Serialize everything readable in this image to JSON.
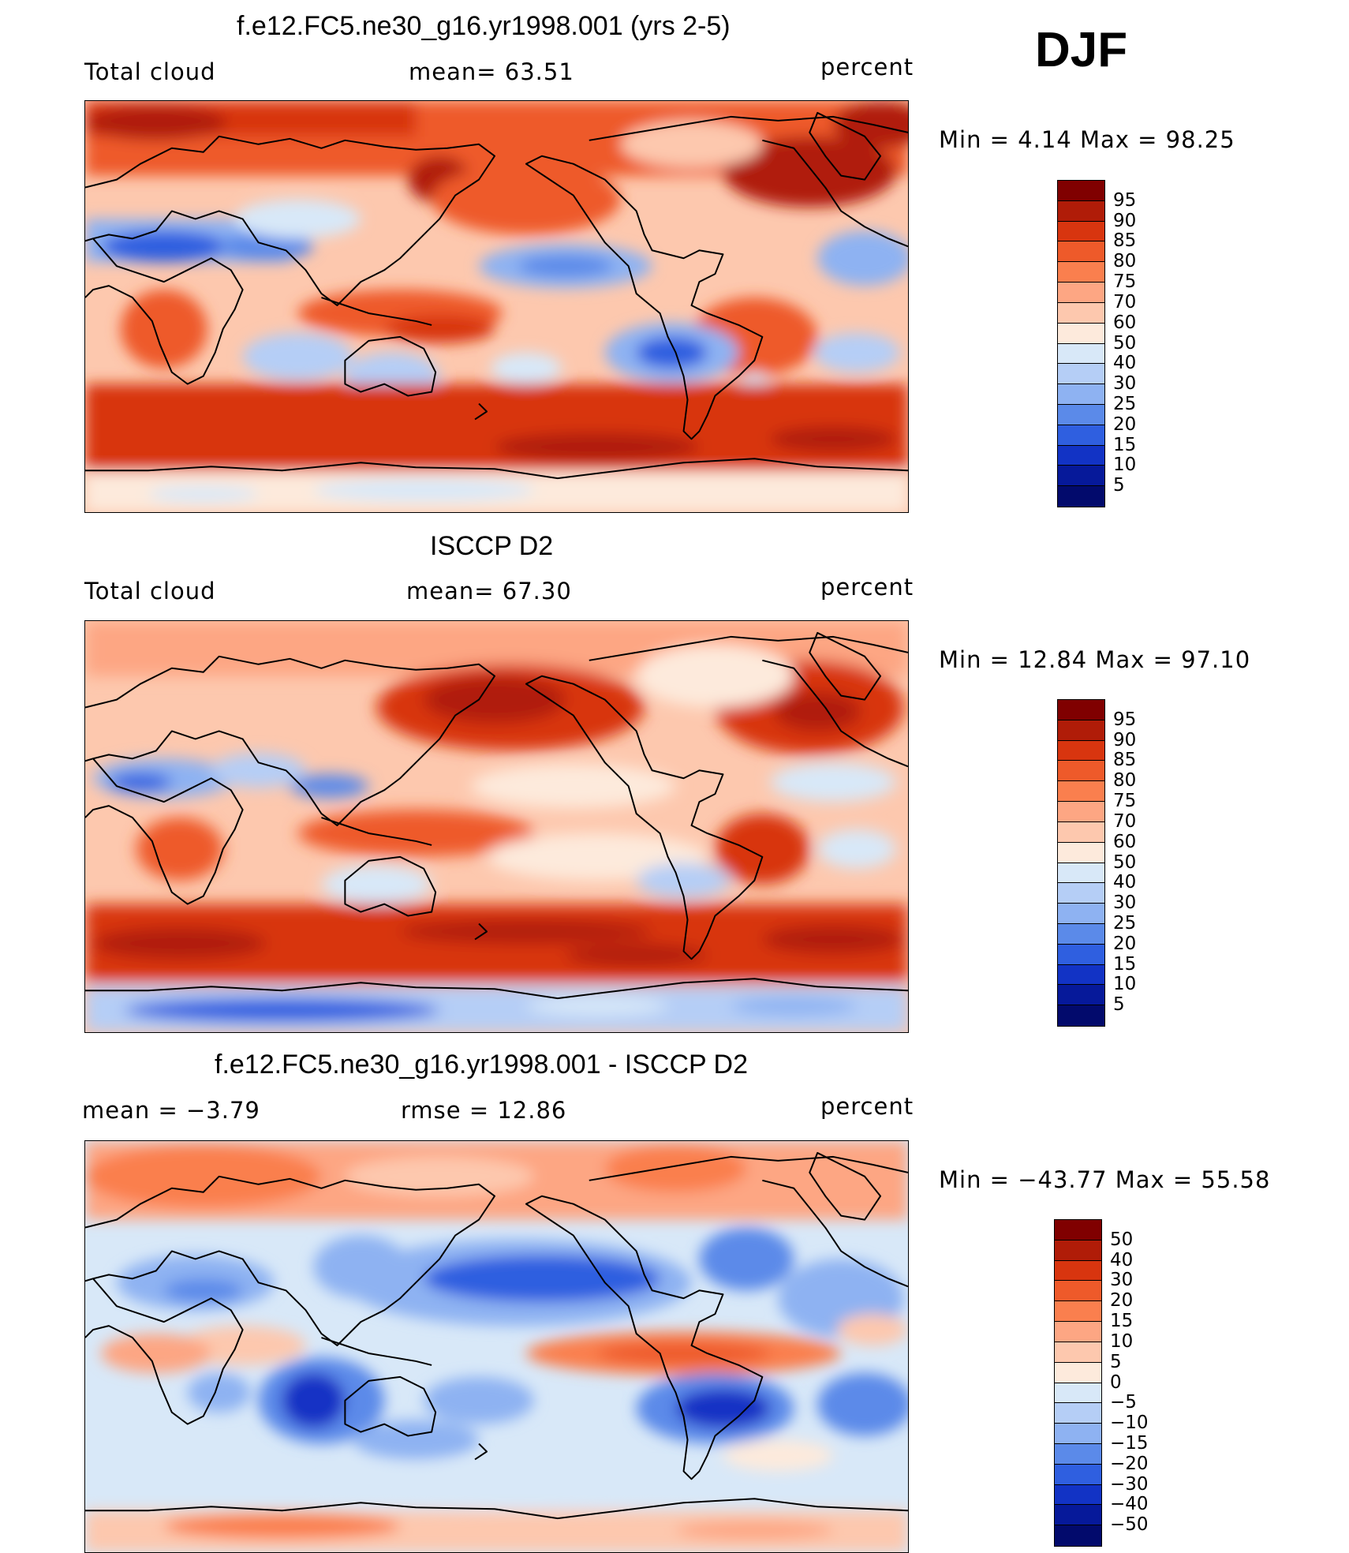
{
  "season": "DJF",
  "panels": [
    {
      "title": "f.e12.FC5.ne30_g16.yr1998.001 (yrs 2-5)",
      "left_label": "Total cloud",
      "center_label": "mean=   63.51",
      "units": "percent",
      "minmax": "Min =    4.14  Max =    98.25",
      "colorbar": {
        "labels": [
          "95",
          "90",
          "85",
          "80",
          "75",
          "70",
          "60",
          "50",
          "40",
          "30",
          "25",
          "20",
          "15",
          "10",
          "5"
        ],
        "colors": [
          "#800000",
          "#b01c08",
          "#d8350f",
          "#ee5a2a",
          "#fa7f4e",
          "#fda683",
          "#fdc8ae",
          "#fdeadc",
          "#d8e8f8",
          "#b5cef6",
          "#8eb2f2",
          "#5b8ae9",
          "#2f5fe0",
          "#1233c5",
          "#06199a",
          "#020a6c"
        ]
      }
    },
    {
      "title": "ISCCP D2",
      "left_label": "Total cloud",
      "center_label": "mean=   67.30",
      "units": "percent",
      "minmax": "Min =   12.84  Max =   97.10",
      "colorbar": {
        "labels": [
          "95",
          "90",
          "85",
          "80",
          "75",
          "70",
          "60",
          "50",
          "40",
          "30",
          "25",
          "20",
          "15",
          "10",
          "5"
        ],
        "colors": [
          "#800000",
          "#b01c08",
          "#d8350f",
          "#ee5a2a",
          "#fa7f4e",
          "#fda683",
          "#fdc8ae",
          "#fdeadc",
          "#d8e8f8",
          "#b5cef6",
          "#8eb2f2",
          "#5b8ae9",
          "#2f5fe0",
          "#1233c5",
          "#06199a",
          "#020a6c"
        ]
      }
    },
    {
      "title": "f.e12.FC5.ne30_g16.yr1998.001 - ISCCP D2",
      "left_label": "mean =   −3.79",
      "center_label": "rmse =   12.86",
      "units": "percent",
      "minmax": "Min = −43.77  Max =   55.58",
      "colorbar": {
        "labels": [
          "50",
          "40",
          "30",
          "20",
          "15",
          "10",
          "5",
          "0",
          "−5",
          "−10",
          "−15",
          "−20",
          "−30",
          "−40",
          "−50"
        ],
        "colors": [
          "#800000",
          "#b01c08",
          "#d8350f",
          "#ee5a2a",
          "#fa7f4e",
          "#fda683",
          "#fdc8ae",
          "#fdeadc",
          "#d8e8f8",
          "#b5cef6",
          "#8eb2f2",
          "#5b8ae9",
          "#2f5fe0",
          "#1233c5",
          "#06199a",
          "#020a6c"
        ]
      }
    }
  ]
}
